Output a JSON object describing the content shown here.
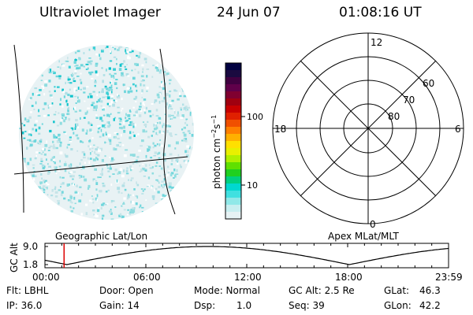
{
  "header": {
    "instrument": "Ultraviolet Imager",
    "date": "24 Jun 07",
    "time": "01:08:16 UT"
  },
  "colorbar": {
    "unit_label": "photon cm",
    "unit_exp1": "−2",
    "unit_mid": "s",
    "unit_exp2": "−1",
    "ticks": [
      "100",
      "10"
    ],
    "colors": [
      "#000040",
      "#1a0a40",
      "#400040",
      "#60004a",
      "#800030",
      "#a00010",
      "#c80000",
      "#e02000",
      "#f05000",
      "#ff8000",
      "#ffb000",
      "#ffe000",
      "#e8f000",
      "#b0f000",
      "#60e000",
      "#20d020",
      "#00d080",
      "#00d8d0",
      "#40e0e0",
      "#90e8e8",
      "#c8eef0",
      "#e6f2f4"
    ]
  },
  "polar": {
    "top": "12",
    "left": "18",
    "right": "6",
    "bottom": "0",
    "rings": [
      "60",
      "70",
      "80"
    ]
  },
  "panel_labels": {
    "left": "Geographic Lat/Lon",
    "right": "Apex MLat/MLT"
  },
  "altitude_plot": {
    "axis_label": "GC Alt",
    "ticks": [
      "9.0",
      "1.8"
    ],
    "time_ticks": [
      "00:00",
      "06:00",
      "12:00",
      "18:00",
      "23:59"
    ],
    "marker_time": "01:08:16",
    "series_color": "#000000",
    "marker_color": "#dd0000"
  },
  "info": {
    "flt": "Flt: LBHL",
    "ip": "IP: 36.0",
    "door": "Door: Open",
    "gain": "Gain: 14",
    "mode": "Mode: Normal",
    "dsp_label": "Dsp:",
    "dsp_value": "1.0",
    "gcalt": "GC Alt: 2.5 Re",
    "seq": "Seq: 39",
    "glat_label": "GLat:",
    "glat_value": "46.3",
    "glon_label": "GLon:",
    "glon_value": "42.2"
  }
}
